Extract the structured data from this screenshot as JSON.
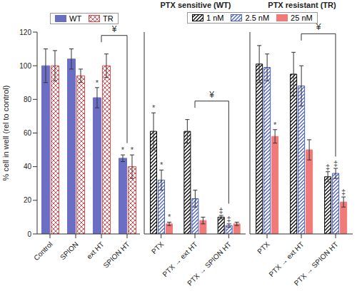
{
  "chart_data": [
    {
      "type": "bar",
      "y_label": "% cell in well (rel to control)",
      "legend": "top",
      "categories": [
        "Control",
        "SPION",
        "ext HT",
        "SPION HT"
      ],
      "series": [
        {
          "name": "WT",
          "color": "#6b6fc4",
          "values": [
            100,
            104,
            81,
            45
          ],
          "errors": [
            10,
            6,
            6,
            2
          ],
          "annotations": [
            null,
            null,
            "*",
            "*"
          ]
        },
        {
          "name": "TR",
          "color": "#e8474c",
          "values": [
            100,
            94,
            100,
            40
          ],
          "errors": [
            9,
            4,
            7,
            7
          ],
          "annotations": [
            null,
            null,
            null,
            "*"
          ]
        }
      ],
      "brackets": [
        {
          "from": "ext HT",
          "to": "SPION HT",
          "label": "¥"
        }
      ],
      "ylim": [
        0,
        120
      ],
      "yticks": [
        0,
        20,
        40,
        60,
        80,
        100,
        120
      ]
    },
    {
      "type": "bar",
      "title": "PTX sensitive (WT)",
      "legend": "top",
      "tick_labels": "x",
      "categories": [
        "PTX",
        "PTX → ext HT",
        "PTX → SPION HT"
      ],
      "series": [
        {
          "name": "1 nM",
          "color": "#000000",
          "values": [
            61,
            61,
            10
          ],
          "errors": [
            11,
            7,
            1
          ],
          "annotations": [
            "*",
            null,
            "‡"
          ]
        },
        {
          "name": "2.5 nM",
          "color": "#4a5fc1",
          "values": [
            32,
            21,
            5
          ],
          "errors": [
            6,
            5,
            1
          ],
          "annotations": [
            "*",
            null,
            "‡"
          ]
        },
        {
          "name": "25 nM",
          "color": "#f07a78",
          "values": [
            6,
            8,
            6
          ],
          "errors": [
            1,
            2,
            1
          ],
          "annotations": [
            "*",
            null,
            null
          ]
        }
      ],
      "brackets": [
        {
          "from": "PTX → ext HT",
          "to": "PTX → SPION HT",
          "label": "¥"
        }
      ],
      "ylim": [
        0,
        120
      ],
      "yticks": [
        0,
        20,
        40,
        60,
        80,
        100,
        120
      ]
    },
    {
      "type": "bar",
      "title": "PTX resistant (TR)",
      "tick_labels": "x",
      "categories": [
        "PTX",
        "PTX → ext HT",
        "PTX → SPION HT"
      ],
      "series": [
        {
          "name": "1 nM",
          "color": "#000000",
          "values": [
            101,
            95,
            34
          ],
          "errors": [
            11,
            13,
            3
          ],
          "annotations": [
            null,
            null,
            "‡"
          ]
        },
        {
          "name": "2.5 nM",
          "color": "#4a5fc1",
          "values": [
            99,
            88,
            36
          ],
          "errors": [
            8,
            12,
            3
          ],
          "annotations": [
            null,
            null,
            "‡"
          ]
        },
        {
          "name": "25 nM",
          "color": "#f07a78",
          "values": [
            58,
            50,
            19
          ],
          "errors": [
            4,
            6,
            3
          ],
          "annotations": [
            "*",
            null,
            "‡"
          ]
        }
      ],
      "brackets": [
        {
          "from": "PTX → ext HT",
          "to": "PTX → SPION HT",
          "label": "¥"
        }
      ],
      "ylim": [
        0,
        120
      ],
      "yticks": [
        0,
        20,
        40,
        60,
        80,
        100,
        120
      ]
    }
  ]
}
